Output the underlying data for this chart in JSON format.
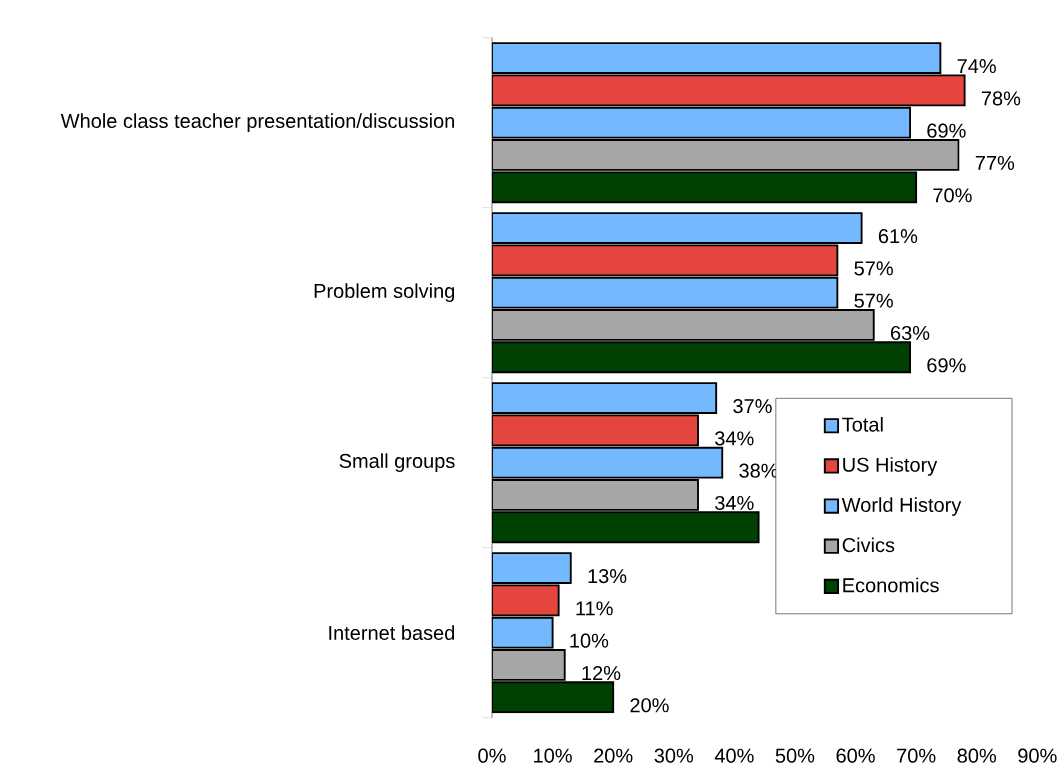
{
  "chart_data": {
    "type": "bar",
    "orientation": "horizontal",
    "categories": [
      "Whole class teacher presentation/discussion",
      "Problem solving",
      "Small groups",
      "Internet based"
    ],
    "series": [
      {
        "name": "Total",
        "color": "#74b8fd",
        "values": [
          74,
          61,
          37,
          13
        ],
        "value_labels": [
          "74%",
          "61%",
          "37%",
          "13%"
        ]
      },
      {
        "name": "US History",
        "color": "#e4453f",
        "values": [
          78,
          57,
          34,
          11
        ],
        "value_labels": [
          "78%",
          "57%",
          "34%",
          "11%"
        ]
      },
      {
        "name": "World History",
        "color": "#74b8fd",
        "values": [
          69,
          57,
          38,
          10
        ],
        "value_labels": [
          "69%",
          "57%",
          "38%",
          "10%"
        ]
      },
      {
        "name": "Civics",
        "color": "#a6a6a6",
        "values": [
          77,
          63,
          34,
          12
        ],
        "value_labels": [
          "77%",
          "63%",
          "34%",
          "12%"
        ]
      },
      {
        "name": "Economics",
        "color": "#004000",
        "values": [
          70,
          69,
          44,
          20
        ],
        "value_labels": [
          "70%",
          "69%",
          null,
          "20%"
        ]
      }
    ],
    "xlim": [
      0,
      90
    ],
    "xticks": [
      {
        "value": 0,
        "label": "0%"
      },
      {
        "value": 10,
        "label": "10%"
      },
      {
        "value": 20,
        "label": "20%"
      },
      {
        "value": 30,
        "label": "30%"
      },
      {
        "value": 40,
        "label": "40%"
      },
      {
        "value": 50,
        "label": "50%"
      },
      {
        "value": 60,
        "label": "60%"
      },
      {
        "value": 70,
        "label": "70%"
      },
      {
        "value": 80,
        "label": "80%"
      },
      {
        "value": 90,
        "label": "90%"
      }
    ],
    "legend": "right"
  }
}
